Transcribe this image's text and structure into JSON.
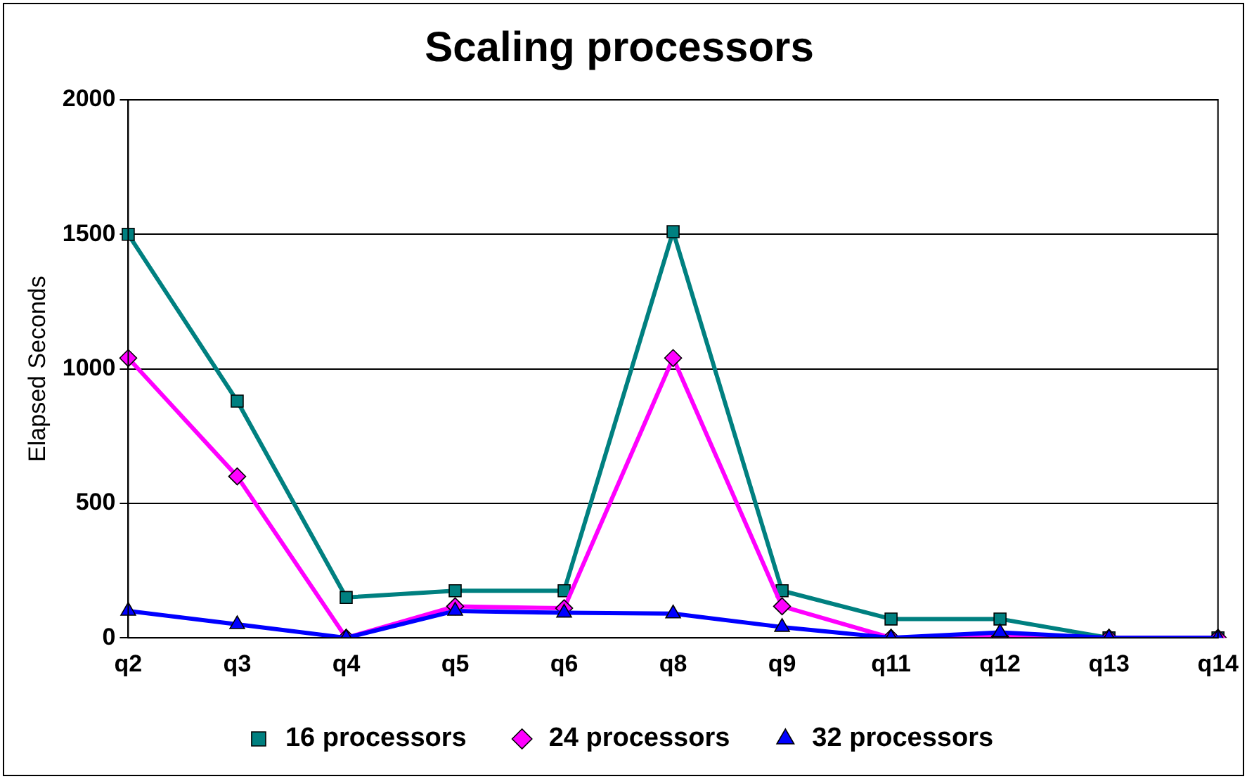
{
  "chart_data": {
    "type": "line",
    "title": "Scaling processors",
    "ylabel": "Elapsed Seconds",
    "categories": [
      "q2",
      "q3",
      "q4",
      "q5",
      "q6",
      "q8",
      "q9",
      "q11",
      "q12",
      "q13",
      "q14"
    ],
    "series": [
      {
        "name": "16 processors",
        "color": "#008080",
        "marker": "square",
        "values": [
          1500,
          880,
          150,
          175,
          175,
          1510,
          175,
          70,
          70,
          0,
          0
        ]
      },
      {
        "name": "24 processors",
        "color": "#ff00ff",
        "marker": "diamond",
        "values": [
          1040,
          600,
          0,
          117,
          110,
          1040,
          117,
          0,
          5,
          0,
          0
        ]
      },
      {
        "name": "32 processors",
        "color": "#0000ff",
        "marker": "triangle",
        "values": [
          100,
          50,
          0,
          100,
          93,
          90,
          40,
          0,
          20,
          0,
          0
        ]
      }
    ],
    "ylim": [
      0,
      2000
    ],
    "yticks": [
      0,
      500,
      1000,
      1500,
      2000
    ],
    "grid": "y",
    "legend": "bottom"
  }
}
